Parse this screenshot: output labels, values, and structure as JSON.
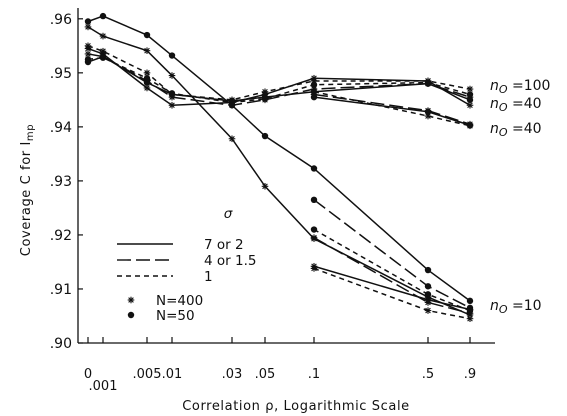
{
  "chart_data": {
    "type": "line",
    "ylabel": "Coverage C for I",
    "ylabel_sub": "mp",
    "xlabel": "Correlation ρ, Logarithmic Scale",
    "x_scale": "logarithmic",
    "ylim": [
      0.9,
      0.962
    ],
    "x_ticks": [
      "0",
      ".001",
      ".005",
      ".01",
      ".03",
      ".05",
      ".1",
      ".5",
      ".9"
    ],
    "y_ticks": [
      ".96",
      ".95",
      ".94",
      ".93",
      ".92",
      ".91",
      ".90"
    ],
    "legend": {
      "title": "σ",
      "line_entries": [
        {
          "style": "solid",
          "label": "7  or  2"
        },
        {
          "style": "long-dash",
          "label": "4  or  1.5"
        },
        {
          "style": "short-dash",
          "label": "1"
        }
      ],
      "marker_entries": [
        {
          "marker": "star",
          "label": "N=400"
        },
        {
          "marker": "dot",
          "label": "N=50"
        }
      ]
    },
    "annotations": [
      {
        "text": "=100",
        "prefix": "n",
        "sub": "O",
        "attach": 0.9465
      },
      {
        "text": "=40",
        "prefix": "n",
        "sub": "O",
        "attach": 0.944
      },
      {
        "text": "=40",
        "prefix": "n",
        "sub": "O",
        "attach": 0.9405
      },
      {
        "text": "=10",
        "prefix": "n",
        "sub": "O",
        "attach": 0.907
      }
    ],
    "series": [
      {
        "line": "solid",
        "marker": "star",
        "values": [
          0.9545,
          0.9535,
          0.9472,
          0.944,
          0.9445,
          0.946,
          0.949,
          0.9485,
          0.944
        ]
      },
      {
        "line": "long-dash",
        "marker": "star",
        "values": [
          0.9535,
          0.953,
          0.9485,
          0.9455,
          0.944,
          0.945,
          0.947,
          0.948,
          0.9455
        ]
      },
      {
        "line": "short-dash",
        "marker": "star",
        "values": [
          0.955,
          0.954,
          0.95,
          0.946,
          0.945,
          0.9465,
          0.9485,
          0.9485,
          0.947
        ]
      },
      {
        "line": "solid",
        "marker": "dot",
        "values": [
          0.952,
          0.953,
          0.9482,
          0.946,
          0.9448,
          0.9455,
          0.9465,
          0.948,
          0.945
        ]
      },
      {
        "line": "short-dash",
        "marker": "dot",
        "values": [
          0.9525,
          0.9528,
          0.949,
          0.9462,
          0.9445,
          0.9452,
          0.9478,
          0.9482,
          0.946
        ]
      },
      {
        "line": "long-dash",
        "marker": "star",
        "start_index": 6,
        "values": [
          0.946,
          0.943,
          0.9405
        ]
      },
      {
        "line": "short-dash",
        "marker": "star",
        "start_index": 6,
        "values": [
          0.9465,
          0.942,
          0.9402
        ]
      },
      {
        "line": "solid",
        "marker": "dot",
        "start_index": 6,
        "values": [
          0.9455,
          0.9428,
          0.9403
        ]
      },
      {
        "line": "solid",
        "marker": "star",
        "values": [
          0.9585,
          0.9568,
          0.9541,
          0.9495,
          0.9378,
          0.929,
          0.9193,
          0.9085,
          0.9052
        ]
      },
      {
        "line": "solid",
        "marker": "dot",
        "values": [
          0.9595,
          0.9605,
          0.957,
          0.9532,
          0.944,
          0.9383,
          0.9323,
          0.9135,
          0.9078
        ]
      },
      {
        "line": "long-dash",
        "marker": "dot",
        "start_index": 6,
        "values": [
          0.9265,
          0.9105,
          0.9065
        ]
      },
      {
        "line": "short-dash",
        "marker": "dot",
        "start_index": 6,
        "values": [
          0.921,
          0.909,
          0.906
        ]
      },
      {
        "line": "solid",
        "marker": "star",
        "start_index": 6,
        "values": [
          0.9142,
          0.908,
          0.9062
        ]
      },
      {
        "line": "short-dash",
        "marker": "star",
        "start_index": 6,
        "values": [
          0.9138,
          0.906,
          0.9045
        ]
      },
      {
        "line": "long-dash",
        "marker": "star",
        "start_index": 6,
        "values": [
          0.9195,
          0.9075,
          0.9055
        ]
      }
    ]
  }
}
